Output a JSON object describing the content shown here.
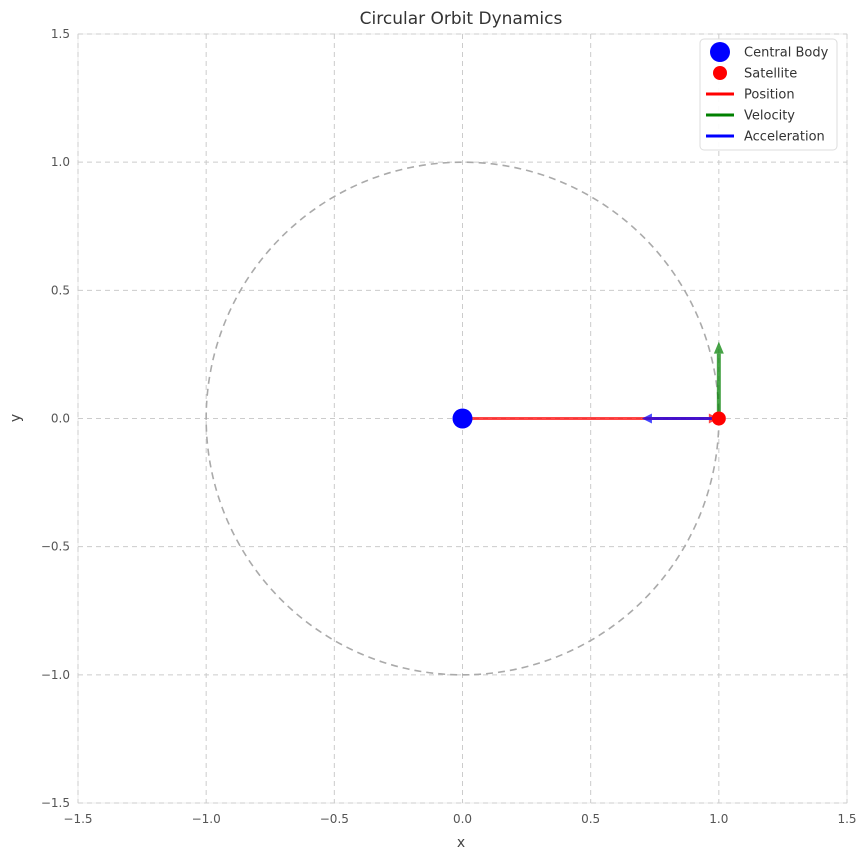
{
  "chart_data": {
    "type": "line",
    "title": "Circular Orbit Dynamics",
    "xlabel": "x",
    "ylabel": "y",
    "xlim": [
      -1.5,
      1.5
    ],
    "ylim": [
      -1.5,
      1.5
    ],
    "xticks": [
      -1.5,
      -1.0,
      -0.5,
      0.0,
      0.5,
      1.0,
      1.5
    ],
    "yticks": [
      -1.5,
      -1.0,
      -0.5,
      0.0,
      0.5,
      1.0,
      1.5
    ],
    "xtick_labels": [
      "−1.5",
      "−1.0",
      "−0.5",
      "0.0",
      "0.5",
      "1.0",
      "1.5"
    ],
    "ytick_labels": [
      "−1.5",
      "−1.0",
      "−0.5",
      "0.0",
      "0.5",
      "1.0",
      "1.5"
    ],
    "grid": true,
    "legend_position": "top-right",
    "orbit": {
      "radius": 1.0,
      "center": [
        0,
        0
      ],
      "color": "#aaaaaa",
      "style": "dashed"
    },
    "central_body": {
      "name": "Central Body",
      "x": 0.0,
      "y": 0.0,
      "color": "#0000ff"
    },
    "satellite": {
      "name": "Satellite",
      "x": 1.0,
      "y": 0.0,
      "color": "#ff0000"
    },
    "vectors": [
      {
        "name": "Position",
        "from": [
          0.0,
          0.0
        ],
        "to": [
          1.0,
          0.0
        ],
        "color": "#ff0000"
      },
      {
        "name": "Velocity",
        "from": [
          1.0,
          0.0
        ],
        "to": [
          1.0,
          0.3
        ],
        "color": "#008000"
      },
      {
        "name": "Acceleration",
        "from": [
          1.0,
          0.0
        ],
        "to": [
          0.7,
          0.0
        ],
        "color": "#0000ff"
      }
    ],
    "legend": [
      {
        "label": "Central Body",
        "kind": "marker",
        "color": "#0000ff"
      },
      {
        "label": "Satellite",
        "kind": "marker",
        "color": "#ff0000"
      },
      {
        "label": "Position",
        "kind": "line",
        "color": "#ff0000"
      },
      {
        "label": "Velocity",
        "kind": "line",
        "color": "#008000"
      },
      {
        "label": "Acceleration",
        "kind": "line",
        "color": "#0000ff"
      }
    ]
  }
}
